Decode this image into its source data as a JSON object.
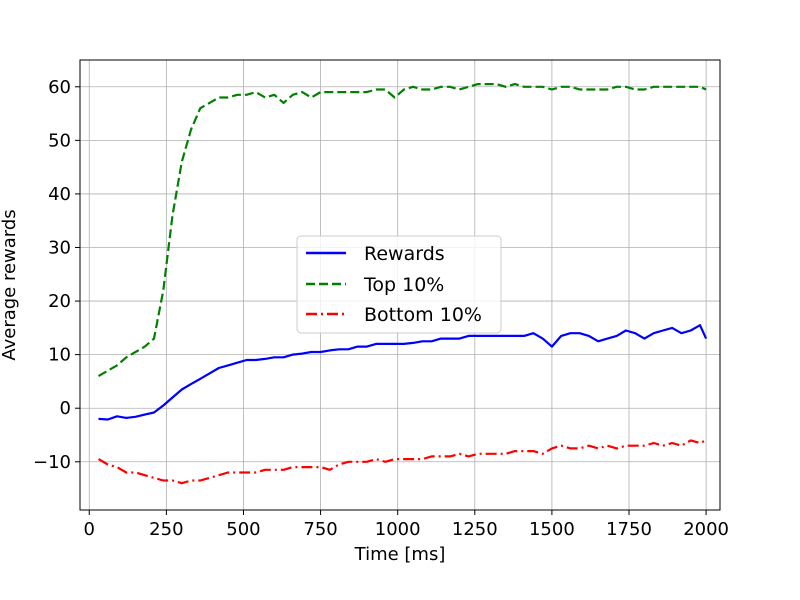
{
  "chart_data": {
    "type": "line",
    "title": "",
    "xlabel": "Time [ms]",
    "ylabel": "Average rewards",
    "xlim": [
      -30,
      2045
    ],
    "ylim": [
      -19,
      65
    ],
    "xticks": [
      0,
      250,
      500,
      750,
      1000,
      1250,
      1500,
      1750,
      2000
    ],
    "yticks": [
      -10,
      0,
      10,
      20,
      30,
      40,
      50,
      60
    ],
    "grid": true,
    "legend_position": "center",
    "x": [
      30,
      60,
      90,
      120,
      150,
      180,
      210,
      240,
      270,
      300,
      330,
      360,
      390,
      420,
      450,
      480,
      510,
      540,
      570,
      600,
      630,
      660,
      690,
      720,
      750,
      780,
      810,
      840,
      870,
      900,
      930,
      960,
      990,
      1020,
      1050,
      1080,
      1110,
      1140,
      1170,
      1200,
      1230,
      1260,
      1290,
      1320,
      1350,
      1380,
      1410,
      1440,
      1470,
      1500,
      1530,
      1560,
      1590,
      1620,
      1650,
      1680,
      1710,
      1740,
      1770,
      1800,
      1830,
      1860,
      1890,
      1920,
      1950,
      1980,
      2000
    ],
    "series": [
      {
        "name": "Rewards",
        "color": "#0000ff",
        "dash": "solid",
        "values": [
          -2.0,
          -2.1,
          -1.5,
          -1.8,
          -1.6,
          -1.2,
          -0.8,
          0.5,
          2.0,
          3.5,
          4.5,
          5.5,
          6.5,
          7.5,
          8.0,
          8.5,
          9.0,
          9.0,
          9.2,
          9.5,
          9.5,
          10.0,
          10.2,
          10.5,
          10.5,
          10.8,
          11.0,
          11.0,
          11.5,
          11.5,
          12.0,
          12.0,
          12.0,
          12.0,
          12.2,
          12.5,
          12.5,
          13.0,
          13.0,
          13.0,
          13.5,
          13.5,
          13.5,
          13.5,
          13.5,
          13.5,
          13.5,
          14.0,
          13.0,
          11.5,
          13.5,
          14.0,
          14.0,
          13.5,
          12.5,
          13.0,
          13.5,
          14.5,
          14.0,
          13.0,
          14.0,
          14.5,
          15.0,
          14.0,
          14.5,
          15.5,
          13.0
        ]
      },
      {
        "name": "Top 10%",
        "color": "#008000",
        "dash": "dashed",
        "values": [
          6.0,
          7.0,
          8.0,
          9.5,
          10.5,
          11.5,
          13.0,
          22.0,
          36.0,
          46.0,
          52.0,
          56.0,
          57.0,
          58.0,
          58.0,
          58.5,
          58.5,
          59.0,
          58.0,
          58.5,
          57.0,
          58.5,
          59.0,
          58.0,
          59.0,
          59.0,
          59.0,
          59.0,
          59.0,
          59.0,
          59.5,
          59.5,
          58.0,
          59.5,
          60.0,
          59.5,
          59.5,
          60.0,
          60.0,
          59.5,
          60.0,
          60.5,
          60.5,
          60.5,
          60.0,
          60.5,
          60.0,
          60.0,
          60.0,
          59.5,
          60.0,
          60.0,
          59.5,
          59.5,
          59.5,
          59.5,
          60.0,
          60.0,
          59.5,
          59.5,
          60.0,
          60.0,
          60.0,
          60.0,
          60.0,
          60.0,
          59.5
        ]
      },
      {
        "name": "Bottom 10%",
        "color": "#ff0000",
        "dash": "dashdot",
        "values": [
          -9.5,
          -10.5,
          -11.0,
          -12.0,
          -12.0,
          -12.5,
          -13.0,
          -13.5,
          -13.5,
          -14.0,
          -13.5,
          -13.5,
          -13.0,
          -12.5,
          -12.0,
          -12.0,
          -12.0,
          -12.0,
          -11.5,
          -11.5,
          -11.5,
          -11.0,
          -11.0,
          -11.0,
          -11.0,
          -11.5,
          -10.5,
          -10.0,
          -10.0,
          -10.0,
          -9.5,
          -10.0,
          -9.5,
          -9.5,
          -9.5,
          -9.5,
          -9.0,
          -9.0,
          -9.0,
          -8.5,
          -9.0,
          -8.5,
          -8.5,
          -8.5,
          -8.5,
          -8.0,
          -8.0,
          -8.0,
          -8.5,
          -7.5,
          -7.0,
          -7.5,
          -7.5,
          -7.0,
          -7.5,
          -7.0,
          -7.5,
          -7.0,
          -7.0,
          -7.0,
          -6.5,
          -7.0,
          -6.5,
          -7.0,
          -6.0,
          -6.5,
          -6.0
        ]
      }
    ]
  }
}
